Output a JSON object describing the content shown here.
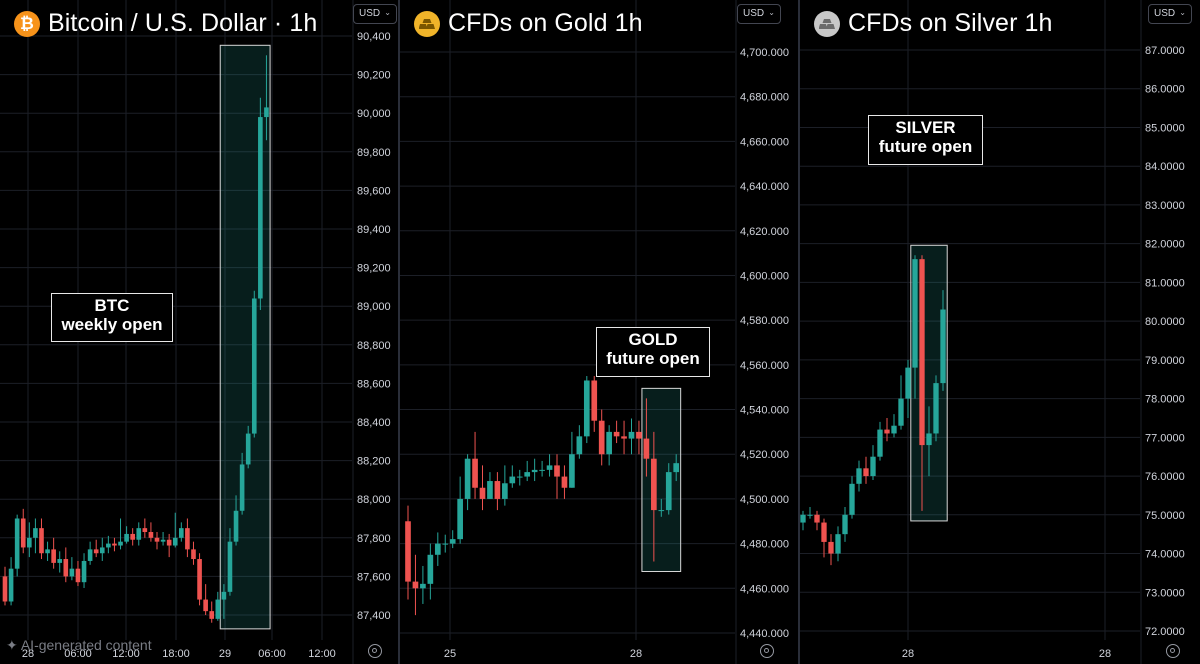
{
  "colors": {
    "up": "#26a69a",
    "down": "#ef5350",
    "grid": "#1c1f27",
    "highlight": "#26a69a"
  },
  "watermark": "✦ AI-generated content",
  "panels": [
    {
      "title": "Bitcoin / U.S. Dollar · 1h",
      "logo": "bitcoin-icon",
      "logo_glyph": "₿",
      "logo_color": "#f7931a",
      "currency": "USD",
      "annotation": [
        "BTC",
        "weekly open"
      ]
    },
    {
      "title": "CFDs on Gold 1h",
      "logo": "gold-bars-icon",
      "logo_glyph": "",
      "logo_color": "#f0b429",
      "currency": "USD",
      "annotation": [
        "GOLD",
        "future open"
      ]
    },
    {
      "title": "CFDs on Silver 1h",
      "logo": "silver-bars-icon",
      "logo_glyph": "",
      "logo_color": "#c0c0c0",
      "currency": "USD",
      "annotation": [
        "SILVER",
        "future open"
      ]
    }
  ],
  "chart_data": [
    {
      "type": "candlestick",
      "title": "Bitcoin / U.S. Dollar · 1h",
      "ylim": [
        87300,
        90500
      ],
      "y_ticks": [
        "90,400",
        "90,200",
        "90,000",
        "89,800",
        "89,600",
        "89,400",
        "89,200",
        "89,000",
        "88,800",
        "88,600",
        "88,400",
        "88,200",
        "88,000",
        "87,800",
        "87,600",
        "87,400"
      ],
      "x_ticks": [
        "28",
        "06:00",
        "12:00",
        "18:00",
        "29",
        "06:00",
        "12:00"
      ],
      "highlight_range": {
        "x_from": 36,
        "x_to": 43
      },
      "candles": [
        [
          87600,
          87470,
          87650,
          87450
        ],
        [
          87470,
          87640,
          87700,
          87450
        ],
        [
          87640,
          87900,
          87920,
          87600
        ],
        [
          87900,
          87750,
          87950,
          87720
        ],
        [
          87750,
          87800,
          87880,
          87700
        ],
        [
          87800,
          87850,
          87900,
          87720
        ],
        [
          87850,
          87720,
          87900,
          87690
        ],
        [
          87720,
          87740,
          87780,
          87680
        ],
        [
          87740,
          87670,
          87800,
          87640
        ],
        [
          87670,
          87690,
          87730,
          87620
        ],
        [
          87690,
          87600,
          87750,
          87570
        ],
        [
          87600,
          87640,
          87700,
          87580
        ],
        [
          87640,
          87570,
          87680,
          87550
        ],
        [
          87570,
          87680,
          87720,
          87540
        ],
        [
          87680,
          87740,
          87780,
          87660
        ],
        [
          87740,
          87720,
          87790,
          87700
        ],
        [
          87720,
          87750,
          87800,
          87680
        ],
        [
          87750,
          87770,
          87810,
          87720
        ],
        [
          87770,
          87760,
          87800,
          87730
        ],
        [
          87760,
          87780,
          87900,
          87740
        ],
        [
          87780,
          87820,
          87860,
          87770
        ],
        [
          87820,
          87790,
          87850,
          87760
        ],
        [
          87790,
          87850,
          87880,
          87760
        ],
        [
          87850,
          87830,
          87900,
          87800
        ],
        [
          87830,
          87800,
          87880,
          87780
        ],
        [
          87800,
          87780,
          87830,
          87740
        ],
        [
          87780,
          87790,
          87830,
          87760
        ],
        [
          87790,
          87760,
          87820,
          87700
        ],
        [
          87760,
          87800,
          87930,
          87750
        ],
        [
          87800,
          87850,
          87880,
          87780
        ],
        [
          87850,
          87740,
          87900,
          87700
        ],
        [
          87740,
          87690,
          87780,
          87660
        ],
        [
          87690,
          87480,
          87720,
          87450
        ],
        [
          87480,
          87420,
          87560,
          87400
        ],
        [
          87420,
          87380,
          87470,
          87360
        ],
        [
          87380,
          87480,
          87520,
          87370
        ],
        [
          87480,
          87520,
          87560,
          87380
        ],
        [
          87520,
          87780,
          87850,
          87500
        ],
        [
          87780,
          87940,
          88020,
          87760
        ],
        [
          87940,
          88180,
          88240,
          87920
        ],
        [
          88180,
          88340,
          88380,
          88160
        ],
        [
          88340,
          89040,
          89080,
          88320
        ],
        [
          89040,
          89980,
          90080,
          88980
        ],
        [
          89980,
          90030,
          90300,
          89860
        ]
      ]
    },
    {
      "type": "candlestick",
      "title": "CFDs on Gold 1h",
      "ylim": [
        4436,
        4712
      ],
      "y_ticks": [
        "4,700.000",
        "4,680.000",
        "4,660.000",
        "4,640.000",
        "4,620.000",
        "4,600.000",
        "4,580.000",
        "4,560.000",
        "4,540.000",
        "4,520.000",
        "4,500.000",
        "4,480.000",
        "4,460.000",
        "4,440.000"
      ],
      "x_ticks": [
        "25",
        "28"
      ],
      "highlight_range": {
        "x_from": 32,
        "x_to": 36
      },
      "candles": [
        [
          4490,
          4463,
          4497,
          4455
        ],
        [
          4463,
          4460,
          4475,
          4448
        ],
        [
          4460,
          4462,
          4470,
          4453
        ],
        [
          4462,
          4475,
          4480,
          4455
        ],
        [
          4475,
          4480,
          4485,
          4470
        ],
        [
          4480,
          4480,
          4484,
          4476
        ],
        [
          4480,
          4482,
          4486,
          4478
        ],
        [
          4482,
          4500,
          4510,
          4480
        ],
        [
          4500,
          4518,
          4520,
          4495
        ],
        [
          4518,
          4505,
          4530,
          4500
        ],
        [
          4505,
          4500,
          4515,
          4495
        ],
        [
          4500,
          4508,
          4512,
          4500
        ],
        [
          4508,
          4500,
          4512,
          4495
        ],
        [
          4500,
          4507,
          4515,
          4497
        ],
        [
          4507,
          4510,
          4515,
          4505
        ],
        [
          4510,
          4510,
          4513,
          4506
        ],
        [
          4510,
          4512,
          4517,
          4508
        ],
        [
          4512,
          4513,
          4518,
          4508
        ],
        [
          4513,
          4513,
          4517,
          4510
        ],
        [
          4513,
          4515,
          4520,
          4510
        ],
        [
          4515,
          4510,
          4520,
          4500
        ],
        [
          4510,
          4505,
          4515,
          4500
        ],
        [
          4505,
          4520,
          4530,
          4505
        ],
        [
          4520,
          4528,
          4533,
          4518
        ],
        [
          4528,
          4553,
          4555,
          4525
        ],
        [
          4553,
          4535,
          4555,
          4530
        ],
        [
          4535,
          4520,
          4540,
          4515
        ],
        [
          4520,
          4530,
          4533,
          4515
        ],
        [
          4530,
          4528,
          4535,
          4525
        ],
        [
          4528,
          4527,
          4535,
          4520
        ],
        [
          4527,
          4530,
          4536,
          4520
        ],
        [
          4530,
          4527,
          4535,
          4520
        ],
        [
          4527,
          4518,
          4545,
          4510
        ],
        [
          4518,
          4495,
          4530,
          4472
        ],
        [
          4495,
          4495,
          4500,
          4492
        ],
        [
          4495,
          4512,
          4516,
          4493
        ],
        [
          4512,
          4516,
          4520,
          4508
        ]
      ]
    },
    {
      "type": "candlestick",
      "title": "CFDs on Silver 1h",
      "ylim": [
        72.4,
        87.6
      ],
      "y_ticks": [
        "87.0000",
        "86.0000",
        "85.0000",
        "84.0000",
        "83.0000",
        "82.0000",
        "81.0000",
        "80.0000",
        "79.0000",
        "78.0000",
        "77.0000",
        "76.0000",
        "75.0000",
        "74.0000",
        "73.0000",
        "72.0000"
      ],
      "x_ticks": [
        "28",
        "28"
      ],
      "highlight_range": {
        "x_from": 16,
        "x_to": 20
      },
      "candles": [
        [
          74.8,
          75.0,
          75.1,
          74.6
        ],
        [
          75.0,
          75.0,
          75.2,
          74.9
        ],
        [
          75.0,
          74.8,
          75.1,
          74.6
        ],
        [
          74.8,
          74.3,
          74.9,
          73.9
        ],
        [
          74.3,
          74.0,
          74.5,
          73.7
        ],
        [
          74.0,
          74.5,
          74.7,
          73.8
        ],
        [
          74.5,
          75.0,
          75.2,
          74.3
        ],
        [
          75.0,
          75.8,
          76.0,
          74.9
        ],
        [
          75.8,
          76.2,
          76.4,
          75.6
        ],
        [
          76.2,
          76.0,
          76.5,
          75.8
        ],
        [
          76.0,
          76.5,
          76.8,
          75.9
        ],
        [
          76.5,
          77.2,
          77.4,
          76.4
        ],
        [
          77.2,
          77.1,
          77.5,
          76.9
        ],
        [
          77.1,
          77.3,
          77.6,
          77.0
        ],
        [
          77.3,
          78.0,
          78.6,
          77.2
        ],
        [
          78.0,
          78.8,
          79.0,
          77.5
        ],
        [
          78.8,
          81.6,
          81.7,
          78.0
        ],
        [
          81.6,
          76.8,
          81.7,
          75.1
        ],
        [
          76.8,
          77.1,
          77.8,
          76.0
        ],
        [
          77.1,
          78.4,
          78.6,
          76.9
        ],
        [
          78.4,
          80.3,
          80.8,
          78.2
        ]
      ]
    }
  ]
}
